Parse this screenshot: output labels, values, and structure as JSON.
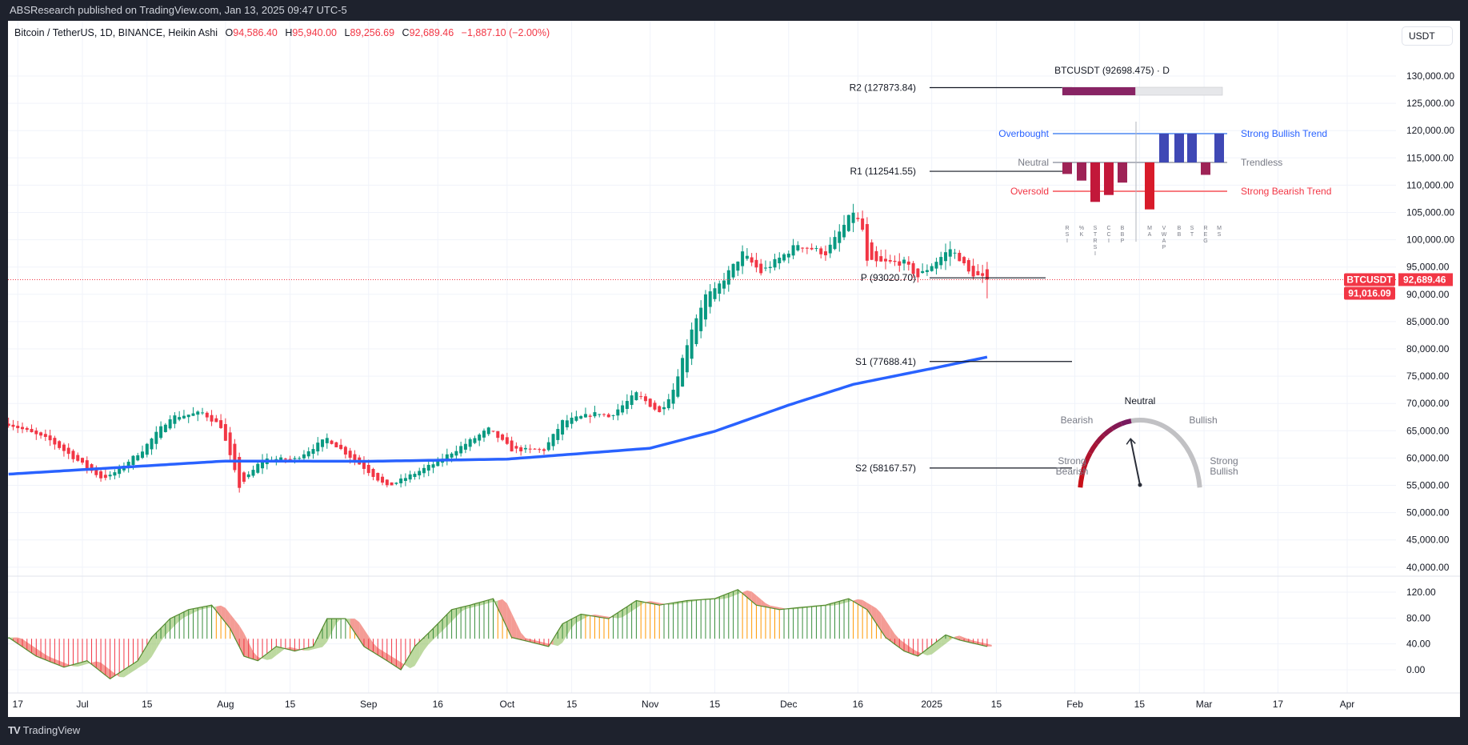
{
  "header": {
    "published": "ABSResearch published on TradingView.com, Jan 13, 2025 09:47 UTC-5"
  },
  "legend": {
    "symbol": "Bitcoin / TetherUS, 1D, BINANCE, Heikin Ashi",
    "o_label": "O",
    "o": "94,586.40",
    "h_label": "H",
    "h": "95,940.00",
    "l_label": "L",
    "l": "89,256.69",
    "c_label": "C",
    "c": "92,689.46",
    "change": "−1,887.10 (−2.00%)"
  },
  "currency_button": "USDT",
  "footer": {
    "logo": "TradingView"
  },
  "colors": {
    "up": "#089981",
    "down": "#f23645",
    "ma": "#2962ff",
    "grid": "#f0f3fa",
    "accent": "#f23645"
  },
  "chart_data": [
    {
      "type": "candlestick",
      "style": "Heikin Ashi",
      "y_ticks": [
        "130,000.00",
        "125,000.00",
        "120,000.00",
        "115,000.00",
        "110,000.00",
        "105,000.00",
        "100,000.00",
        "95,000.00",
        "90,000.00",
        "85,000.00",
        "80,000.00",
        "75,000.00",
        "70,000.00",
        "65,000.00",
        "60,000.00",
        "55,000.00",
        "50,000.00",
        "45,000.00",
        "40,000.00"
      ],
      "y_tick_values": [
        130000,
        125000,
        120000,
        115000,
        110000,
        105000,
        100000,
        95000,
        90000,
        85000,
        80000,
        75000,
        70000,
        65000,
        60000,
        55000,
        50000,
        45000,
        40000
      ],
      "ylim": [
        40000,
        135000
      ],
      "x_ticks": [
        {
          "label": "17",
          "date": "2024-06-17"
        },
        {
          "label": "Jul",
          "date": "2024-07-01"
        },
        {
          "label": "15",
          "date": "2024-07-15"
        },
        {
          "label": "Aug",
          "date": "2024-08-01"
        },
        {
          "label": "15",
          "date": "2024-08-15"
        },
        {
          "label": "Sep",
          "date": "2024-09-01"
        },
        {
          "label": "16",
          "date": "2024-09-16"
        },
        {
          "label": "Oct",
          "date": "2024-10-01"
        },
        {
          "label": "15",
          "date": "2024-10-15"
        },
        {
          "label": "Nov",
          "date": "2024-11-01"
        },
        {
          "label": "15",
          "date": "2024-11-15"
        },
        {
          "label": "Dec",
          "date": "2024-12-01"
        },
        {
          "label": "16",
          "date": "2024-12-16"
        },
        {
          "label": "2025",
          "date": "2025-01-01"
        },
        {
          "label": "15",
          "date": "2025-01-15"
        },
        {
          "label": "Feb",
          "date": "2025-02-01"
        },
        {
          "label": "15",
          "date": "2025-02-15"
        },
        {
          "label": "Mar",
          "date": "2025-03-01"
        },
        {
          "label": "17",
          "date": "2025-03-17"
        },
        {
          "label": "Apr",
          "date": "2025-04-01"
        }
      ],
      "close_path": [
        [
          "2024-06-15",
          66300
        ],
        [
          "2024-06-24",
          63200
        ],
        [
          "2024-07-05",
          56400
        ],
        [
          "2024-07-07",
          56700
        ],
        [
          "2024-07-14",
          61500
        ],
        [
          "2024-07-20",
          67500
        ],
        [
          "2024-07-27",
          68300
        ],
        [
          "2024-07-31",
          65800
        ],
        [
          "2024-08-04",
          54700
        ],
        [
          "2024-08-09",
          59800
        ],
        [
          "2024-08-16",
          59800
        ],
        [
          "2024-08-23",
          63600
        ],
        [
          "2024-08-30",
          58900
        ],
        [
          "2024-09-05",
          54700
        ],
        [
          "2024-09-15",
          58900
        ],
        [
          "2024-09-27",
          65300
        ],
        [
          "2024-10-02",
          61500
        ],
        [
          "2024-10-09",
          61500
        ],
        [
          "2024-10-13",
          66700
        ],
        [
          "2024-10-21",
          68300
        ],
        [
          "2024-10-23",
          67500
        ],
        [
          "2024-10-29",
          71800
        ],
        [
          "2024-11-03",
          68300
        ],
        [
          "2024-11-06",
          72600
        ],
        [
          "2024-11-10",
          83800
        ],
        [
          "2024-11-13",
          89800
        ],
        [
          "2024-11-15",
          90600
        ],
        [
          "2024-11-21",
          97500
        ],
        [
          "2024-11-25",
          94000
        ],
        [
          "2024-11-29",
          96600
        ],
        [
          "2024-12-03",
          99200
        ],
        [
          "2024-12-09",
          97500
        ],
        [
          "2024-12-15",
          105200
        ],
        [
          "2024-12-17",
          101800
        ],
        [
          "2024-12-18",
          95800
        ],
        [
          "2024-12-26",
          95800
        ],
        [
          "2024-12-29",
          93200
        ],
        [
          "2025-01-05",
          98300
        ],
        [
          "2025-01-07",
          96600
        ],
        [
          "2025-01-09",
          94000
        ],
        [
          "2025-01-13",
          92689.46
        ]
      ],
      "last_candle": {
        "open": 94586.4,
        "high": 95940.0,
        "low": 89256.69,
        "close": 92689.46
      },
      "moving_average": [
        [
          "2024-06-15",
          57050
        ],
        [
          "2024-08-01",
          59450
        ],
        [
          "2024-09-01",
          59400
        ],
        [
          "2024-10-01",
          59800
        ],
        [
          "2024-11-01",
          61800
        ],
        [
          "2024-11-15",
          64900
        ],
        [
          "2024-12-01",
          69700
        ],
        [
          "2024-12-15",
          73500
        ],
        [
          "2025-01-01",
          76400
        ],
        [
          "2025-01-13",
          78500
        ]
      ],
      "pivots": [
        {
          "label": "R2 (127873.84)",
          "value": 127873.84
        },
        {
          "label": "R1 (112541.55)",
          "value": 112541.55
        },
        {
          "label": "P (93020.70)",
          "value": 93020.7
        },
        {
          "label": "S1 (77688.41)",
          "value": 77688.41
        },
        {
          "label": "S2 (58167.57)",
          "value": 58167.57
        }
      ],
      "price_tags": {
        "symbol": "BTCUSDT",
        "last": "92,689.46",
        "second": "91,016.09",
        "last_value": 92689.46
      }
    },
    {
      "type": "oscillator",
      "y_ticks": [
        "120.00",
        "80.00",
        "40.00",
        "0.00"
      ],
      "y_tick_values": [
        120,
        80,
        40,
        0
      ],
      "ylim": [
        -20,
        130
      ],
      "baseline": 48,
      "values": [
        [
          "2024-06-15",
          50
        ],
        [
          "2024-06-21",
          21
        ],
        [
          "2024-06-27",
          4
        ],
        [
          "2024-07-02",
          14
        ],
        [
          "2024-07-07",
          -14
        ],
        [
          "2024-07-13",
          14
        ],
        [
          "2024-07-16",
          50
        ],
        [
          "2024-07-20",
          79
        ],
        [
          "2024-07-24",
          93
        ],
        [
          "2024-07-29",
          100
        ],
        [
          "2024-08-02",
          64
        ],
        [
          "2024-08-05",
          21
        ],
        [
          "2024-08-08",
          14
        ],
        [
          "2024-08-12",
          36
        ],
        [
          "2024-08-16",
          29
        ],
        [
          "2024-08-20",
          36
        ],
        [
          "2024-08-23",
          79
        ],
        [
          "2024-08-27",
          79
        ],
        [
          "2024-08-31",
          36
        ],
        [
          "2024-09-05",
          14
        ],
        [
          "2024-09-08",
          0
        ],
        [
          "2024-09-11",
          36
        ],
        [
          "2024-09-15",
          64
        ],
        [
          "2024-09-19",
          93
        ],
        [
          "2024-09-23",
          100
        ],
        [
          "2024-09-28",
          110
        ],
        [
          "2024-10-02",
          50
        ],
        [
          "2024-10-06",
          43
        ],
        [
          "2024-10-10",
          36
        ],
        [
          "2024-10-13",
          71
        ],
        [
          "2024-10-17",
          86
        ],
        [
          "2024-10-23",
          79
        ],
        [
          "2024-10-29",
          107
        ],
        [
          "2024-11-03",
          100
        ],
        [
          "2024-11-09",
          107
        ],
        [
          "2024-11-15",
          110
        ],
        [
          "2024-11-20",
          124
        ],
        [
          "2024-11-24",
          100
        ],
        [
          "2024-11-29",
          93
        ],
        [
          "2024-12-03",
          96
        ],
        [
          "2024-12-09",
          100
        ],
        [
          "2024-12-14",
          110
        ],
        [
          "2024-12-18",
          93
        ],
        [
          "2024-12-22",
          50
        ],
        [
          "2024-12-26",
          29
        ],
        [
          "2024-12-29",
          21
        ],
        [
          "2025-01-02",
          43
        ],
        [
          "2025-01-04",
          54
        ],
        [
          "2025-01-07",
          46
        ],
        [
          "2025-01-13",
          36
        ]
      ]
    },
    {
      "type": "bar",
      "title": "BTCUSDT (92698.475) · D",
      "sentiment_fill": 0.456,
      "levels": {
        "overbought": "Overbought",
        "neutral": "Neutral",
        "oversold": "Oversold",
        "strong_bull": "Strong Bullish Trend",
        "trendless": "Trendless",
        "strong_bear": "Strong Bearish Trend"
      },
      "level_colors": {
        "overbought": "#2962ff",
        "neutral": "#787b86",
        "oversold": "#f23645"
      },
      "categories": [
        "RSI",
        "%K",
        "STRSI",
        "CCI",
        "BBP",
        "MA",
        "VWAP",
        "BB",
        "ST",
        "REG",
        "MS"
      ],
      "values": [
        -0.4,
        -0.63,
        -1.37,
        -1.13,
        -0.7,
        -1.63,
        1,
        1,
        1,
        -0.43,
        1
      ],
      "ylim": [
        -2,
        1.2
      ]
    },
    {
      "type": "gauge",
      "labels": {
        "neutral": "Neutral",
        "bearish": "Bearish",
        "bullish": "Bullish",
        "strong_bearish_1": "Strong",
        "strong_bearish_2": "Bearish",
        "strong_bullish_1": "Strong",
        "strong_bullish_2": "Bullish"
      },
      "needle_fraction": 0.45
    }
  ]
}
